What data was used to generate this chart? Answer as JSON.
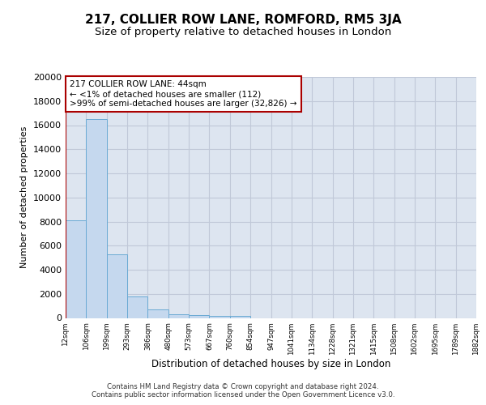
{
  "title": "217, COLLIER ROW LANE, ROMFORD, RM5 3JA",
  "subtitle": "Size of property relative to detached houses in London",
  "xlabel": "Distribution of detached houses by size in London",
  "ylabel": "Number of detached properties",
  "bar_values": [
    8100,
    16500,
    5300,
    1750,
    700,
    330,
    230,
    200,
    170,
    0,
    0,
    0,
    0,
    0,
    0,
    0,
    0,
    0,
    0,
    0
  ],
  "categories": [
    "12sqm",
    "106sqm",
    "199sqm",
    "293sqm",
    "386sqm",
    "480sqm",
    "573sqm",
    "667sqm",
    "760sqm",
    "854sqm",
    "947sqm",
    "1041sqm",
    "1134sqm",
    "1228sqm",
    "1321sqm",
    "1415sqm",
    "1508sqm",
    "1602sqm",
    "1695sqm",
    "1789sqm",
    "1882sqm"
  ],
  "bar_color": "#c5d8ee",
  "bar_edge_color": "#6aaad4",
  "marker_color": "#aa0000",
  "annotation_text": "217 COLLIER ROW LANE: 44sqm\n← <1% of detached houses are smaller (112)\n>99% of semi-detached houses are larger (32,826) →",
  "annotation_box_color": "#ffffff",
  "annotation_border_color": "#aa0000",
  "ylim": [
    0,
    20000
  ],
  "yticks": [
    0,
    2000,
    4000,
    6000,
    8000,
    10000,
    12000,
    14000,
    16000,
    18000,
    20000
  ],
  "plot_bg_color": "#dde5f0",
  "fig_bg_color": "#ffffff",
  "grid_color": "#c0c8d8",
  "footer": "Contains HM Land Registry data © Crown copyright and database right 2024.\nContains public sector information licensed under the Open Government Licence v3.0.",
  "title_fontsize": 11,
  "subtitle_fontsize": 9.5
}
